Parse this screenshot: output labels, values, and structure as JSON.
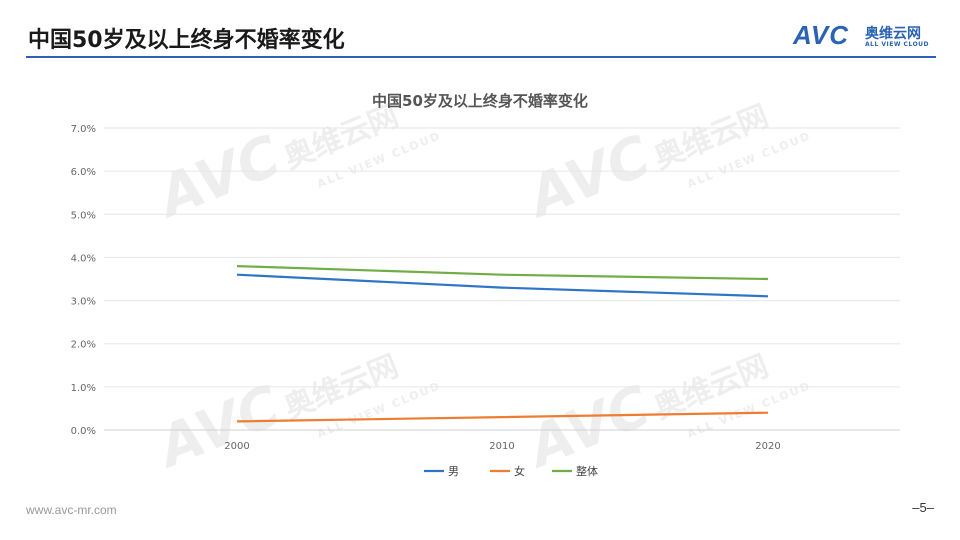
{
  "slide": {
    "title": "中国50岁及以上终身不婚率变化",
    "footer_url": "www.avc-mr.com",
    "page_number": "–5–"
  },
  "logo": {
    "avc": "AVC",
    "cn": "奥维云网",
    "en": "ALL VIEW CLOUD"
  },
  "colors": {
    "accent": "#2b62b3",
    "male": "#2e75c8",
    "female": "#ed7d31",
    "overall": "#70ad47"
  },
  "chart_data": {
    "type": "line",
    "title": "中国50岁及以上终身不婚率变化",
    "categories": [
      "2000",
      "2010",
      "2020"
    ],
    "series": [
      {
        "name": "男",
        "values": [
          3.6,
          3.3,
          3.1
        ],
        "color": "#2e75c8"
      },
      {
        "name": "女",
        "values": [
          0.2,
          0.3,
          0.4
        ],
        "color": "#ed7d31"
      },
      {
        "name": "整体",
        "values": [
          3.8,
          3.6,
          3.5
        ],
        "color": "#70ad47"
      }
    ],
    "y_ticks": [
      "0.0%",
      "1.0%",
      "2.0%",
      "3.0%",
      "4.0%",
      "5.0%",
      "6.0%",
      "7.0%"
    ],
    "ylim": [
      0,
      7
    ],
    "grid": true,
    "legend_position": "bottom"
  }
}
